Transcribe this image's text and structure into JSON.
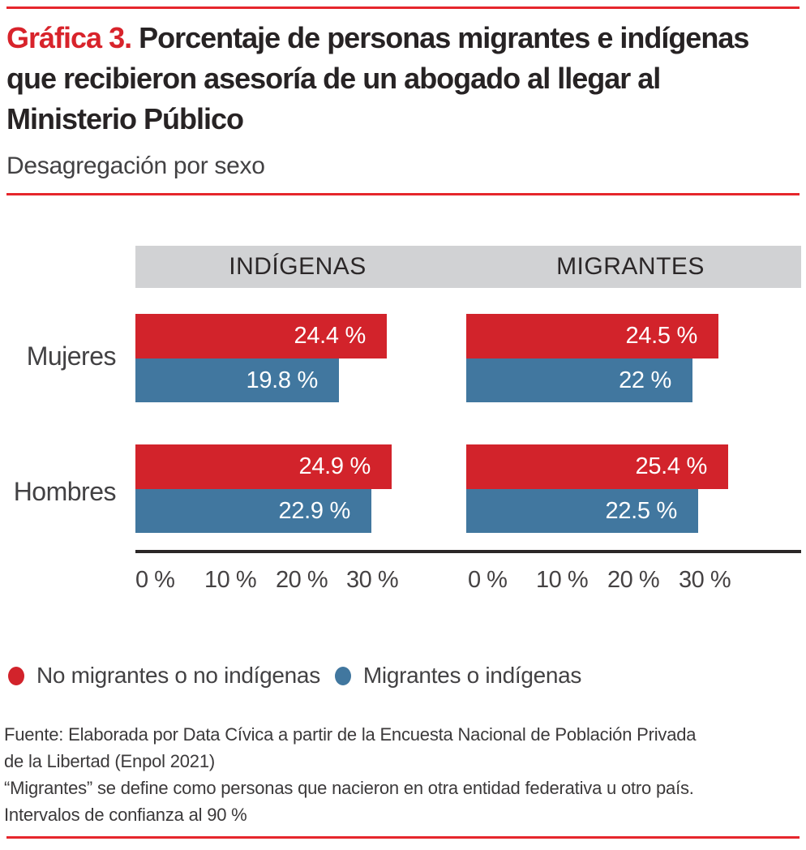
{
  "header": {
    "title_prefix": "Gráfica 3.",
    "title_lines": [
      "Porcentaje de personas migrantes e indígenas",
      "que recibieron asesoría de un abogado al llegar al",
      "Ministerio Público"
    ],
    "subtitle": "Desagregación por sexo"
  },
  "colors": {
    "accent_rule": "#e6262c",
    "title_accent": "#d8232b",
    "band_gray": "#d1d2d4",
    "series_red": "#d2232b",
    "series_blue": "#41779f"
  },
  "chart_data": {
    "type": "bar",
    "orientation": "horizontal",
    "title": "Porcentaje de personas migrantes e indígenas que recibieron asesoría de un abogado al llegar al Ministerio Público",
    "subtitle": "Desagregación por sexo",
    "categories": [
      "Mujeres",
      "Hombres"
    ],
    "x_ticks": [
      "0 %",
      "10 %",
      "20 %",
      "30 %"
    ],
    "xlim": [
      0,
      35
    ],
    "grid": false,
    "legend_position": "bottom",
    "legend": [
      {
        "label": "No migrantes o no indígenas",
        "color": "#d2232b"
      },
      {
        "label": "Migrantes o indígenas",
        "color": "#41779f"
      }
    ],
    "panels": [
      {
        "title": "INDÍGENAS",
        "rows": [
          {
            "category": "Mujeres",
            "values": [
              {
                "series": "No migrantes o no indígenas",
                "value": 24.4,
                "label": "24.4 %"
              },
              {
                "series": "Migrantes o indígenas",
                "value": 19.8,
                "label": "19.8 %"
              }
            ]
          },
          {
            "category": "Hombres",
            "values": [
              {
                "series": "No migrantes o no indígenas",
                "value": 24.9,
                "label": "24.9 %"
              },
              {
                "series": "Migrantes o indígenas",
                "value": 22.9,
                "label": "22.9 %"
              }
            ]
          }
        ]
      },
      {
        "title": "MIGRANTES",
        "rows": [
          {
            "category": "Mujeres",
            "values": [
              {
                "series": "No migrantes o no indígenas",
                "value": 24.5,
                "label": "24.5 %"
              },
              {
                "series": "Migrantes o indígenas",
                "value": 22,
                "label": "22 %"
              }
            ]
          },
          {
            "category": "Hombres",
            "values": [
              {
                "series": "No migrantes o no indígenas",
                "value": 25.4,
                "label": "25.4 %"
              },
              {
                "series": "Migrantes o indígenas",
                "value": 22.5,
                "label": "22.5 %"
              }
            ]
          }
        ]
      }
    ]
  },
  "footer": {
    "lines": [
      "Fuente: Elaborada por Data Cívica a partir de la Encuesta Nacional de Población Privada",
      "de la Libertad (Enpol 2021)",
      "“Migrantes” se define como personas que nacieron en otra entidad federativa u otro país.",
      "Intervalos de confianza al 90 %"
    ]
  }
}
